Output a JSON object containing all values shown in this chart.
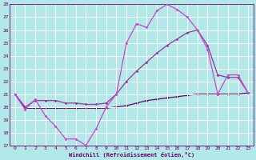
{
  "xlabel": "Windchill (Refroidissement éolien,°C)",
  "background_color": "#b2e8e8",
  "grid_color": "#ffffff",
  "line_color1": "#cc44cc",
  "line_color2": "#993399",
  "line_color3": "#660066",
  "xlim": [
    -0.5,
    23.5
  ],
  "ylim": [
    17,
    28
  ],
  "yticks": [
    17,
    18,
    19,
    20,
    21,
    22,
    23,
    24,
    25,
    26,
    27,
    28
  ],
  "xticks": [
    0,
    1,
    2,
    3,
    4,
    5,
    6,
    7,
    8,
    9,
    10,
    11,
    12,
    13,
    14,
    15,
    16,
    17,
    18,
    19,
    20,
    21,
    22,
    23
  ],
  "series1_x": [
    0,
    1,
    2,
    3,
    4,
    5,
    6,
    7,
    8,
    9,
    10,
    11,
    12,
    13,
    14,
    15,
    16,
    17,
    18,
    19,
    20,
    21,
    22,
    23
  ],
  "series1_y": [
    21.0,
    19.8,
    20.6,
    19.3,
    18.5,
    17.5,
    17.5,
    17.0,
    18.3,
    20.0,
    21.0,
    25.0,
    26.5,
    26.2,
    27.5,
    28.0,
    27.6,
    27.0,
    26.0,
    24.5,
    21.0,
    22.5,
    22.5,
    21.1
  ],
  "series2_x": [
    0,
    1,
    2,
    3,
    4,
    5,
    6,
    7,
    8,
    9,
    10,
    11,
    12,
    13,
    14,
    15,
    16,
    17,
    18,
    19,
    20,
    21,
    22,
    23
  ],
  "series2_y": [
    21.0,
    20.0,
    20.5,
    20.5,
    20.5,
    20.3,
    20.3,
    20.2,
    20.2,
    20.3,
    21.0,
    22.0,
    22.8,
    23.5,
    24.2,
    24.8,
    25.3,
    25.8,
    26.0,
    24.8,
    22.5,
    22.3,
    22.3,
    21.1
  ],
  "series3_x": [
    0,
    1,
    2,
    3,
    4,
    5,
    6,
    7,
    8,
    9,
    10,
    11,
    12,
    13,
    14,
    15,
    16,
    17,
    18,
    19,
    20,
    21,
    22,
    23
  ],
  "series3_y": [
    21.0,
    19.9,
    19.9,
    19.9,
    19.9,
    19.9,
    19.9,
    19.9,
    19.9,
    19.9,
    20.0,
    20.1,
    20.3,
    20.5,
    20.6,
    20.7,
    20.8,
    20.9,
    21.0,
    21.0,
    21.0,
    21.0,
    21.0,
    21.1
  ]
}
